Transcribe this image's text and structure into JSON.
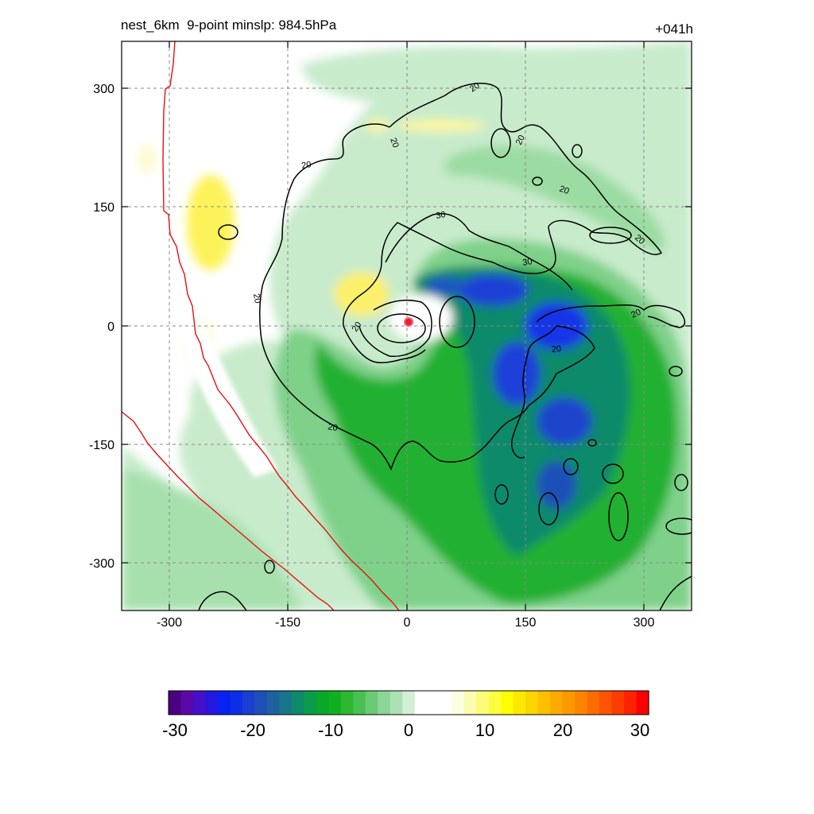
{
  "header": {
    "title": "nest_6km  9-point minslp: 984.5hPa",
    "forecast_hour": "+041h"
  },
  "chart_data": {
    "type": "heatmap",
    "title": "nest_6km  9-point minslp: 984.5hPa",
    "xlim": [
      -360,
      360
    ],
    "ylim": [
      -360,
      360
    ],
    "x_ticks": [
      -300,
      -150,
      0,
      150,
      300
    ],
    "y_ticks": [
      300,
      150,
      0,
      -150,
      -300
    ],
    "x_tick_labels": [
      "-300",
      "-150",
      "0",
      "150",
      "300"
    ],
    "y_tick_labels": [
      "300",
      "150",
      "0",
      "-150",
      "-300"
    ],
    "grid": true,
    "grid_style": "dashed",
    "colorbar": {
      "range": [
        -30,
        30
      ],
      "ticks": [
        -30,
        -20,
        -10,
        0,
        10,
        20,
        30
      ],
      "tick_labels": [
        "-30",
        "-20",
        "-10",
        "0",
        "10",
        "20",
        "30"
      ],
      "colors": [
        "#4b0082",
        "#5a08a8",
        "#4510c8",
        "#2418e0",
        "#0822f2",
        "#0b2fe6",
        "#1a3fd0",
        "#1f50b8",
        "#1e62a0",
        "#17768a",
        "#0f8a6a",
        "#0a9c4a",
        "#08a828",
        "#12b020",
        "#2cb830",
        "#48c052",
        "#6acb75",
        "#8cd596",
        "#aee0b5",
        "#d2eed6",
        "#ffffff",
        "#ffffff",
        "#ffffff",
        "#fdfde0",
        "#fcfcb0",
        "#fcfc7a",
        "#fdfd40",
        "#fefe00",
        "#fde800",
        "#fcd400",
        "#fcc000",
        "#fcac00",
        "#fc9800",
        "#fc8400",
        "#fc6c00",
        "#fc5400",
        "#fc3c00",
        "#fc2400",
        "#fe0000"
      ]
    },
    "contour_labels": [
      "20",
      "20",
      "20",
      "20",
      "20",
      "30",
      "30",
      "20",
      "20",
      "20",
      "20",
      "20",
      "20"
    ],
    "storm_center": {
      "x": 0,
      "y": 0
    }
  }
}
